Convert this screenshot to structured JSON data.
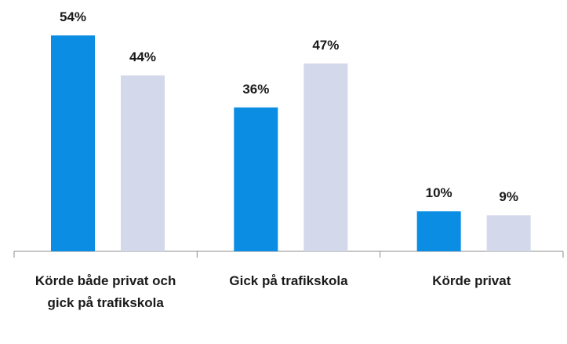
{
  "chart_data": {
    "type": "bar",
    "categories": [
      "Körde både privat och gick på trafikskola",
      "Gick på trafikskola",
      "Körde privat"
    ],
    "series": [
      {
        "color": "#0a8de3",
        "values": [
          54,
          36,
          10
        ],
        "value_labels": [
          "54%",
          "36%",
          "10%"
        ]
      },
      {
        "color": "#d3d9ea",
        "values": [
          44,
          47,
          9
        ],
        "value_labels": [
          "44%",
          "47%",
          "9%"
        ]
      }
    ],
    "ylim": [
      0,
      60
    ]
  }
}
